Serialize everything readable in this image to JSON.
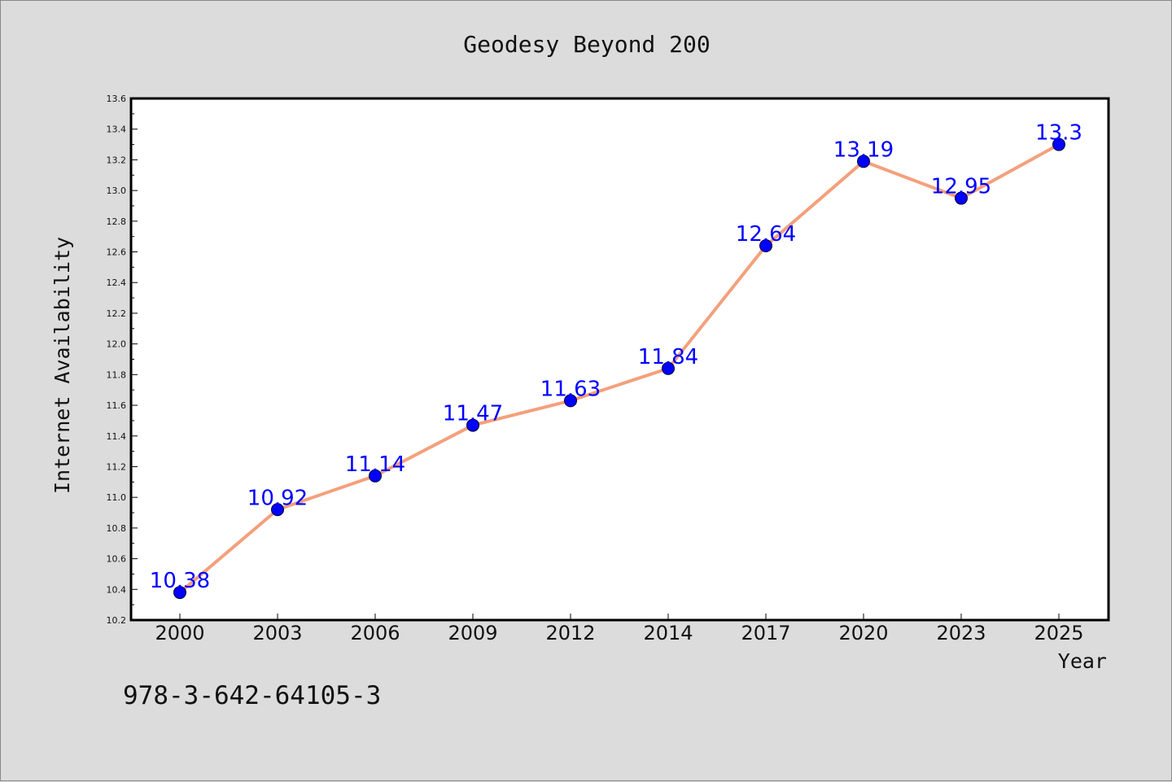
{
  "chart_data": {
    "type": "line",
    "title": "Geodesy Beyond 200",
    "xlabel": "Year",
    "ylabel": "Internet Availability",
    "categories": [
      "2000",
      "2003",
      "2006",
      "2009",
      "2012",
      "2014",
      "2017",
      "2020",
      "2023",
      "2025"
    ],
    "series": [
      {
        "values": [
          10.38,
          10.92,
          11.14,
          11.47,
          11.63,
          11.84,
          12.64,
          13.19,
          12.95,
          13.3
        ],
        "data_labels": [
          "10.38",
          "10.92",
          "11.14",
          "11.47",
          "11.63",
          "11.84",
          "12.64",
          "13.19",
          "12.95",
          "13.3"
        ],
        "line_color": "#f4a07c",
        "marker_color": "#0000ff",
        "label_color": "#0000ff"
      }
    ],
    "ylim": [
      10.2,
      13.6
    ],
    "yticks": [
      "10.2",
      "10.4",
      "10.6",
      "10.8",
      "11.0",
      "11.2",
      "11.4",
      "11.6",
      "11.8",
      "12.0",
      "12.2",
      "12.4",
      "12.6",
      "12.8",
      "13.0",
      "13.2",
      "13.4",
      "13.6"
    ],
    "grid": false,
    "legend": "none"
  },
  "footer": {
    "isbn": "978-3-642-64105-3"
  },
  "colors": {
    "background": "#dcdcdc",
    "plot_background": "#ffffff",
    "axes": "#000000"
  }
}
